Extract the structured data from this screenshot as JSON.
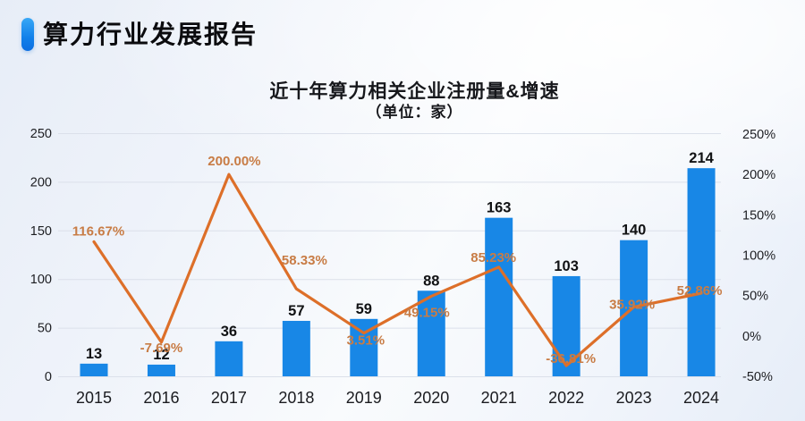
{
  "header": {
    "title": "算力行业发展报告"
  },
  "chart_data": {
    "type": "bar",
    "combo": "bar+line",
    "title": "近十年算力相关企业注册量&增速",
    "subtitle": "（单位：家）",
    "categories": [
      "2015",
      "2016",
      "2017",
      "2018",
      "2019",
      "2020",
      "2021",
      "2022",
      "2023",
      "2024"
    ],
    "series": [
      {
        "name": "注册量",
        "type": "bar",
        "axis": "left",
        "values": [
          13,
          12,
          36,
          57,
          59,
          88,
          163,
          103,
          140,
          214
        ],
        "color": "#1887e6",
        "value_label_color": "#111214"
      },
      {
        "name": "增速",
        "type": "line",
        "axis": "right",
        "values": [
          116.67,
          -7.69,
          200.0,
          58.33,
          3.51,
          49.15,
          85.23,
          -36.81,
          35.92,
          52.86
        ],
        "point_labels": [
          "116.67%",
          "-7.69%",
          "200.00%",
          "58.33%",
          "3.51%",
          "49.15%",
          "85.23%",
          "-36.81%",
          "35.92%",
          "52.86%"
        ],
        "color": "#dd6f29",
        "label_color": "#c87c45"
      }
    ],
    "left_axis": {
      "ticks": [
        "0",
        "50",
        "100",
        "150",
        "200",
        "250"
      ],
      "tick_values": [
        0,
        50,
        100,
        150,
        200,
        250
      ],
      "range": [
        0,
        250
      ],
      "label_color": "#1d1e22"
    },
    "right_axis": {
      "ticks": [
        "-50%",
        "0%",
        "50%",
        "100%",
        "150%",
        "200%",
        "250%"
      ],
      "tick_values": [
        -50,
        0,
        50,
        100,
        150,
        200,
        250
      ],
      "range": [
        -50,
        250
      ],
      "label_color": "#1d1e22"
    },
    "grid": true,
    "grid_color": "#dbe0ea",
    "legend_position": "none",
    "x_label_color": "#1a1b1f"
  }
}
